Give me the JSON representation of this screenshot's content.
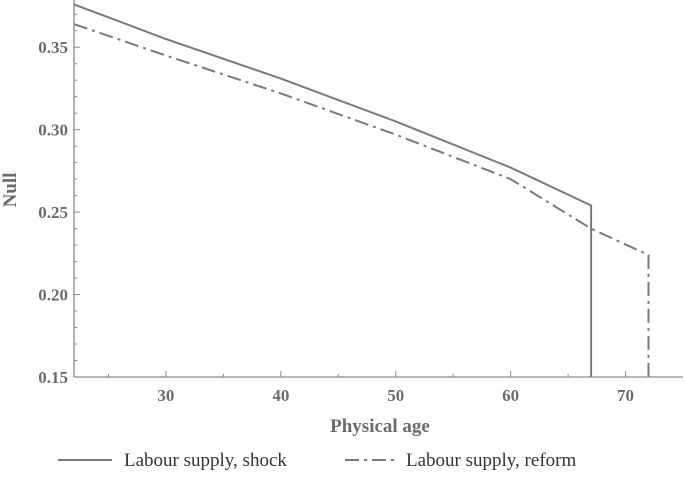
{
  "chart_data": {
    "type": "line",
    "title": "",
    "xlabel": "Physical age",
    "ylabel": "Null",
    "xlim": [
      22,
      75
    ],
    "ylim": [
      0.15,
      0.375
    ],
    "x_ticks": [
      30,
      40,
      50,
      60,
      70
    ],
    "y_ticks": [
      0.15,
      0.2,
      0.25,
      0.3,
      0.35
    ],
    "x_tick_labels": [
      "30",
      "40",
      "50",
      "60",
      "70"
    ],
    "y_tick_labels": [
      "0.15",
      "0.20",
      "0.25",
      "0.30",
      "0.35"
    ],
    "grid": false,
    "legend_position": "bottom",
    "series": [
      {
        "name": "Labour supply, shock",
        "style": "solid",
        "color": "#7a7a7a",
        "points": [
          [
            22,
            0.376
          ],
          [
            30,
            0.355
          ],
          [
            40,
            0.331
          ],
          [
            50,
            0.305
          ],
          [
            60,
            0.277
          ],
          [
            67,
            0.254
          ],
          [
            67,
            0.15
          ]
        ]
      },
      {
        "name": "Labour supply, reform",
        "style": "dashdot",
        "color": "#7a7a7a",
        "points": [
          [
            22,
            0.364
          ],
          [
            30,
            0.345
          ],
          [
            40,
            0.322
          ],
          [
            50,
            0.297
          ],
          [
            60,
            0.27
          ],
          [
            67,
            0.24
          ],
          [
            72,
            0.224
          ],
          [
            72,
            0.15
          ]
        ]
      }
    ]
  }
}
